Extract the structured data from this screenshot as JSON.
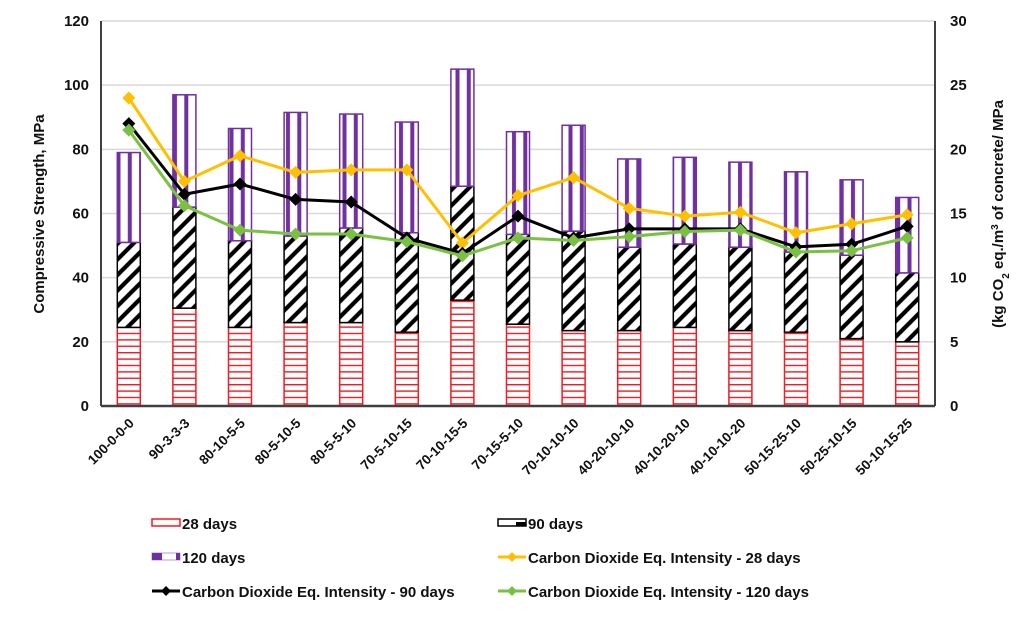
{
  "chart_data": {
    "type": "bar",
    "subtype": "stacked-bar-with-secondary-lines",
    "title": "",
    "xlabel": "",
    "ylabel": "Compressive Strength, MPa",
    "y2label_parts": [
      "(kg CO",
      "2",
      " eq./m",
      "3",
      " of concrete/ MPa"
    ],
    "ylim": [
      0,
      120
    ],
    "yticks": [
      0,
      20,
      40,
      60,
      80,
      100,
      120
    ],
    "y2lim": [
      0,
      30
    ],
    "y2ticks": [
      0,
      5,
      10,
      15,
      20,
      25,
      30
    ],
    "grid": true,
    "legend_position": "bottom",
    "categories": [
      "100-0-0-0",
      "90-3-3-3",
      "80-10-5-5",
      "80-5-10-5",
      "80-5-5-10",
      "70-5-10-15",
      "70-10-15-5",
      "70-15-5-10",
      "70-10-10-10",
      "40-20-10-10",
      "40-10-20-10",
      "40-10-10-20",
      "50-15-25-10",
      "50-25-10-15",
      "50-10-15-25"
    ],
    "bar_series": [
      {
        "name": "28 days",
        "color": "#ee1c24",
        "pattern": "horizontal",
        "values": [
          24.5,
          30.5,
          24.5,
          26,
          26,
          23,
          33,
          25.5,
          23.5,
          23.5,
          24.5,
          23.5,
          23,
          21,
          20
        ]
      },
      {
        "name": "90 days",
        "color": "#000000",
        "pattern": "diagonal",
        "values": [
          26.5,
          31.5,
          27,
          27,
          29.5,
          31,
          35.5,
          28,
          31,
          26,
          26,
          26,
          25,
          26,
          21.5
        ]
      },
      {
        "name": "120 days",
        "color": "#7030a0",
        "pattern": "vertical",
        "values": [
          28,
          35,
          35,
          38.5,
          35.5,
          34.5,
          36.5,
          32,
          33,
          27.5,
          27,
          26.5,
          25,
          23.5,
          23.5
        ]
      }
    ],
    "line_series": [
      {
        "name": "Carbon Dioxide Eq. Intensity - 28 days",
        "axis": "right",
        "color": "#ffc000",
        "values": [
          24,
          17.5,
          19.5,
          18.2,
          18.4,
          18.4,
          12.7,
          16.4,
          17.8,
          15.4,
          14.8,
          15.1,
          13.5,
          14.2,
          14.9
        ]
      },
      {
        "name": "Carbon Dioxide Eq. Intensity - 90 days",
        "axis": "right",
        "color": "#000000",
        "values": [
          22,
          16.5,
          17.3,
          16.1,
          15.9,
          13.1,
          11.9,
          14.8,
          13.1,
          13.8,
          13.8,
          13.8,
          12.4,
          12.6,
          14
        ]
      },
      {
        "name": "Carbon Dioxide Eq. Intensity - 120 days",
        "axis": "right",
        "color": "#7ac143",
        "values": [
          21.5,
          15.6,
          13.7,
          13.4,
          13.4,
          12.8,
          11.7,
          13.1,
          12.9,
          13.2,
          13.6,
          13.7,
          12,
          12.1,
          13.1
        ]
      }
    ],
    "legend": [
      {
        "label": "28 days",
        "kind": "bar",
        "series": 0
      },
      {
        "label": "90 days",
        "kind": "bar",
        "series": 1
      },
      {
        "label": "120 days",
        "kind": "bar",
        "series": 2
      },
      {
        "label": "Carbon Dioxide Eq. Intensity - 28 days",
        "kind": "line",
        "series": 0
      },
      {
        "label": "Carbon Dioxide Eq. Intensity - 90 days",
        "kind": "line",
        "series": 1
      },
      {
        "label": "Carbon Dioxide Eq. Intensity - 120 days",
        "kind": "line",
        "series": 2
      }
    ]
  }
}
